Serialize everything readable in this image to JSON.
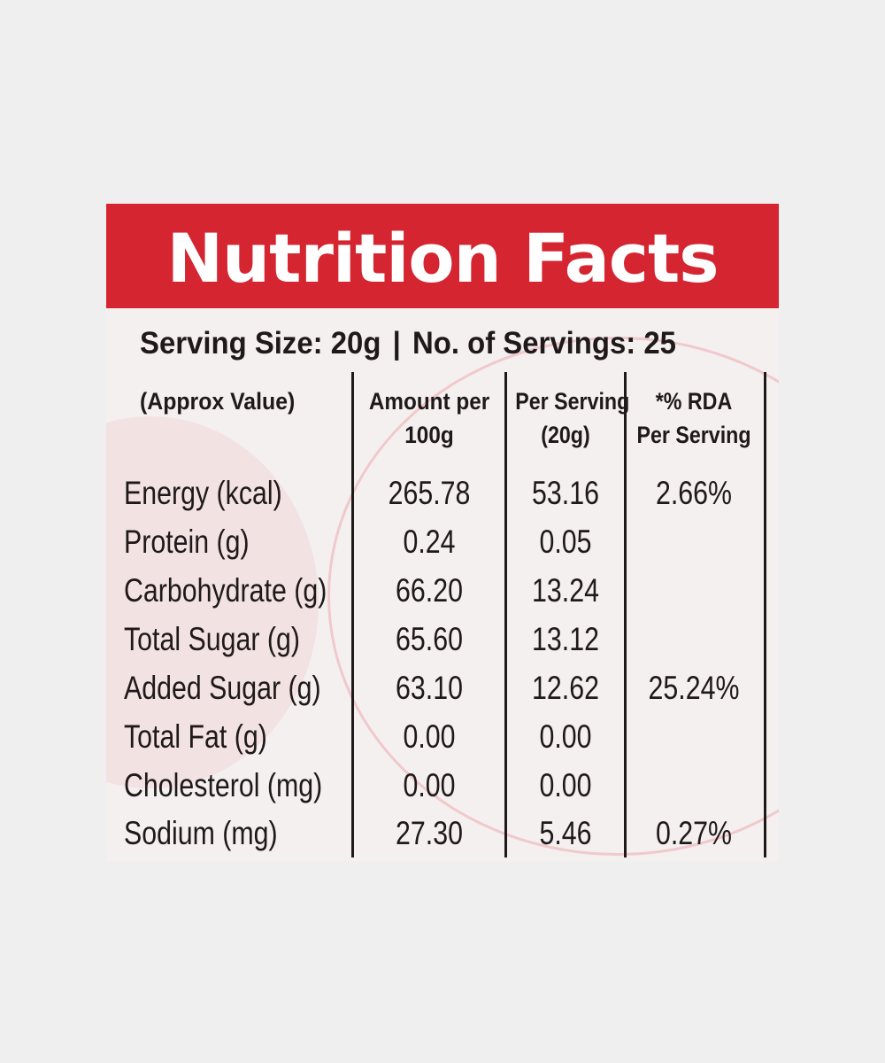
{
  "label": {
    "title": "Nutrition Facts",
    "serving_size": "Serving Size: 20g",
    "separator": "|",
    "servings": "No. of Servings: 25",
    "headers": {
      "nutrient": "(Approx Value)",
      "per100_line1": "Amount per",
      "per100_line2": "100g",
      "perserving_line1": "Per Serving",
      "perserving_line2": "(20g)",
      "rda_line1": "*% RDA",
      "rda_line2": "Per Serving"
    },
    "rows": [
      {
        "name": "Energy (kcal)",
        "per100": "265.78",
        "perserving": "53.16",
        "rda": "2.66%"
      },
      {
        "name": "Protein (g)",
        "per100": "0.24",
        "perserving": "0.05",
        "rda": ""
      },
      {
        "name": "Carbohydrate (g)",
        "per100": "66.20",
        "perserving": "13.24",
        "rda": ""
      },
      {
        "name": "Total Sugar (g)",
        "per100": "65.60",
        "perserving": "13.12",
        "rda": ""
      },
      {
        "name": "Added Sugar (g)",
        "per100": "63.10",
        "perserving": "12.62",
        "rda": "25.24%"
      },
      {
        "name": "Total Fat (g)",
        "per100": "0.00",
        "perserving": "0.00",
        "rda": ""
      },
      {
        "name": "Cholesterol (mg)",
        "per100": "0.00",
        "perserving": "0.00",
        "rda": ""
      },
      {
        "name": "Sodium (mg)",
        "per100": "27.30",
        "perserving": "5.46",
        "rda": "0.27%"
      }
    ]
  },
  "colors": {
    "header_red": "#d42531",
    "text": "#1f1a19",
    "background": "#efefef"
  }
}
